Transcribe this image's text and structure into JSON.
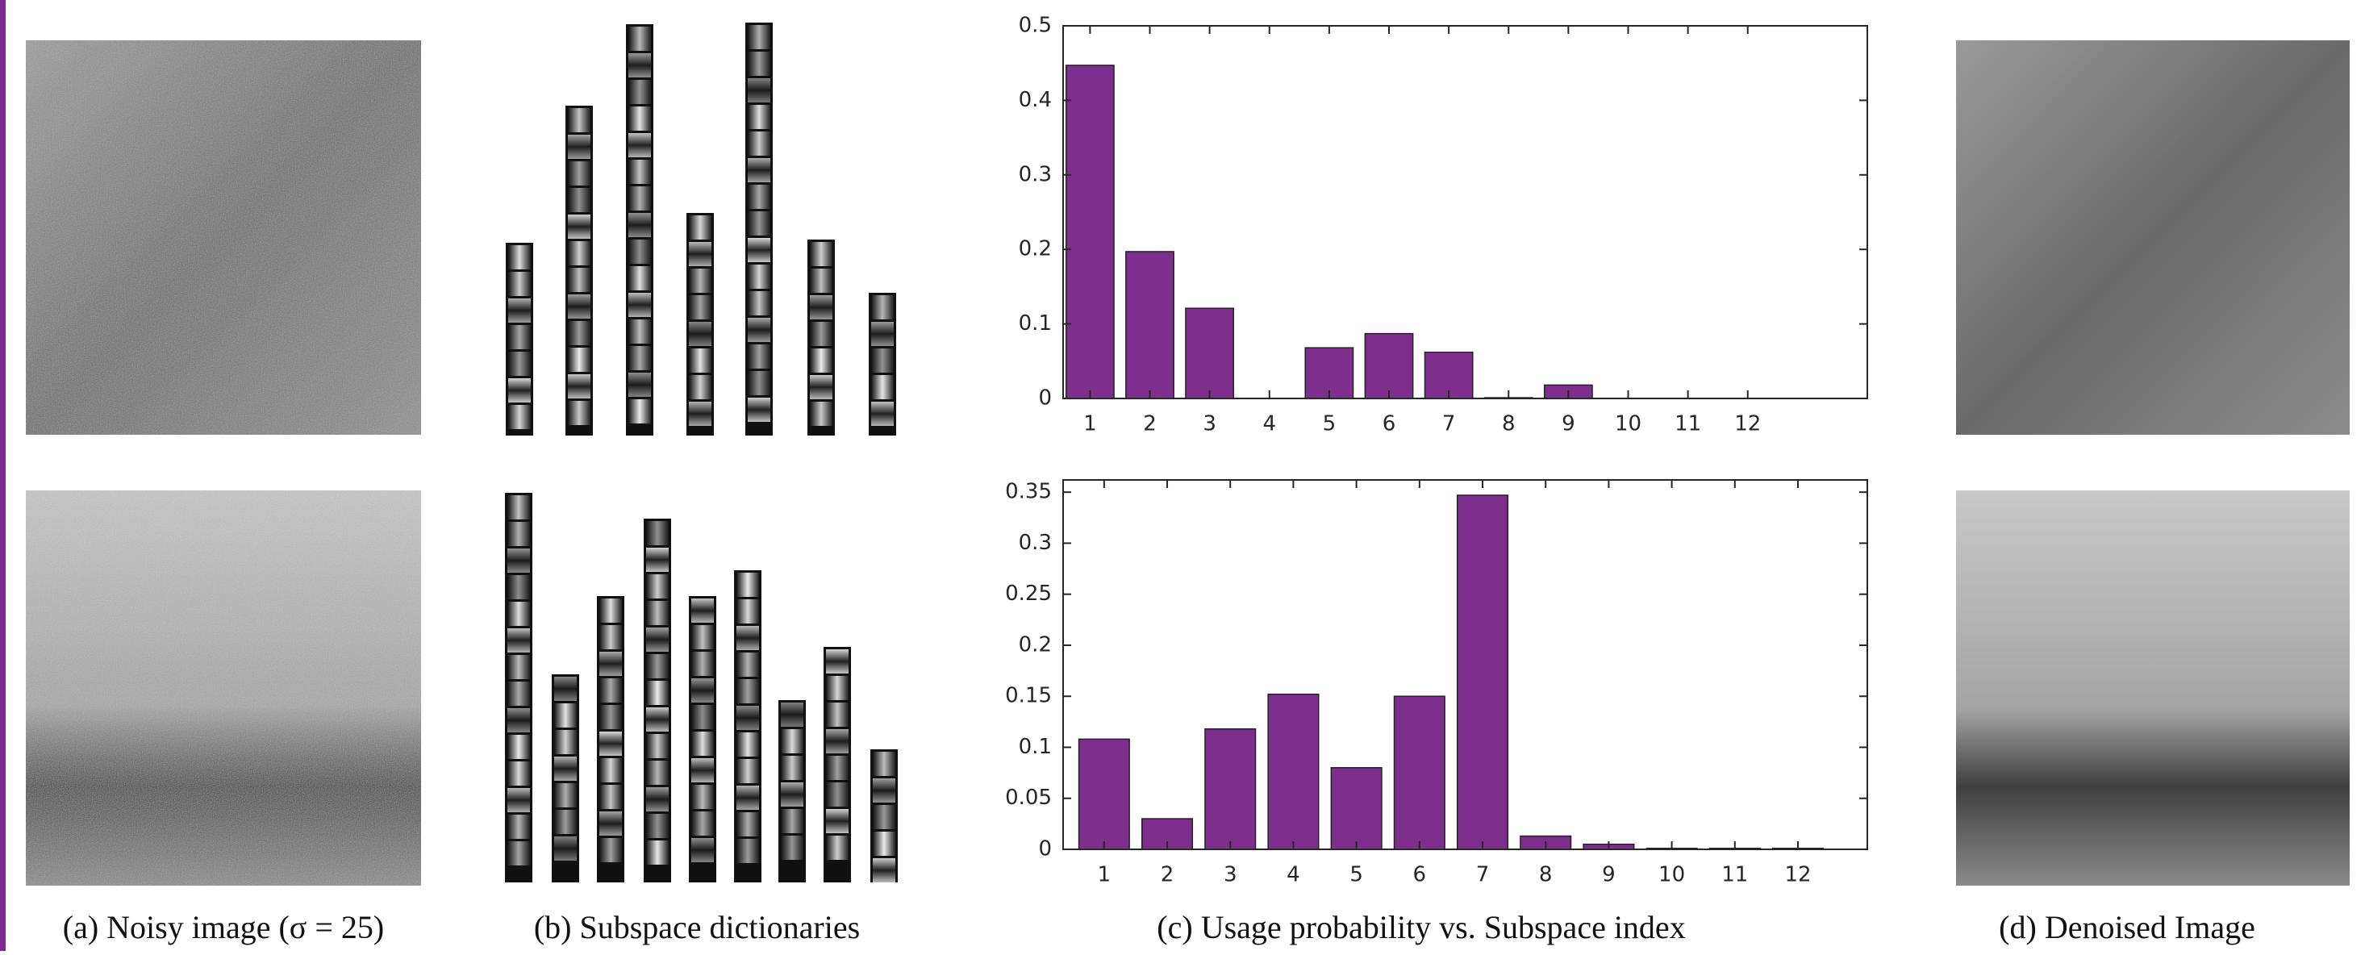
{
  "captions": [
    "(a) Noisy image (σ = 25)",
    "(b) Subspace dictionaries",
    "(c) Usage probability vs. Subspace index",
    "(d) Denoised Image"
  ],
  "chart_data": [
    {
      "type": "bar",
      "x": [
        1,
        2,
        3,
        4,
        5,
        6,
        7,
        8,
        9,
        10,
        11,
        12
      ],
      "values": [
        0.447,
        0.197,
        0.121,
        0,
        0.068,
        0.087,
        0.062,
        0.001,
        0.018,
        0,
        0,
        0
      ],
      "color": "#7e2f8e",
      "xlim": [
        0.55,
        14
      ],
      "xticks": [
        1,
        2,
        3,
        4,
        5,
        6,
        7,
        8,
        9,
        10,
        11,
        12
      ],
      "ylim": [
        0,
        0.5
      ],
      "yticks": [
        0,
        0.1,
        0.2,
        0.3,
        0.4,
        0.5
      ]
    },
    {
      "type": "bar",
      "x": [
        1,
        2,
        3,
        4,
        5,
        6,
        7,
        8,
        9,
        10,
        11,
        12
      ],
      "values": [
        0.108,
        0.03,
        0.118,
        0.152,
        0.08,
        0.15,
        0.347,
        0.013,
        0.005,
        0.001,
        0.001,
        0.001
      ],
      "color": "#7e2f8e",
      "xlim": [
        0.35,
        13.1
      ],
      "xticks": [
        1,
        2,
        3,
        4,
        5,
        6,
        7,
        8,
        9,
        10,
        11,
        12
      ],
      "ylim": [
        0,
        0.362
      ],
      "yticks": [
        0,
        0.05,
        0.1,
        0.15,
        0.2,
        0.25,
        0.3,
        0.35
      ]
    }
  ]
}
